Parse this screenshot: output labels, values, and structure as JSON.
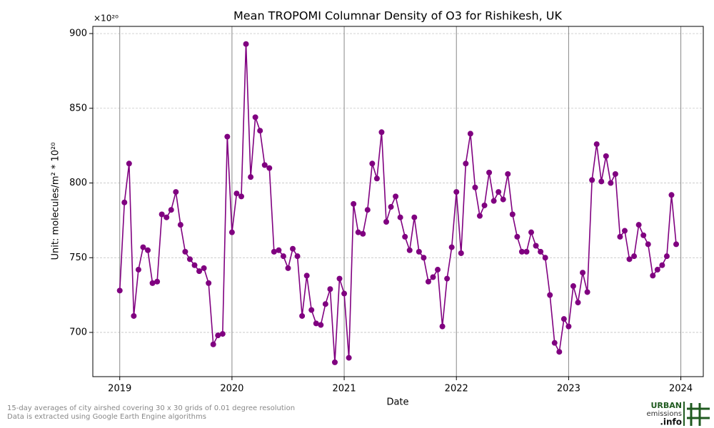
{
  "chart_data": {
    "type": "line",
    "title": "Mean TROPOMI Columnar Density of O3 for Rishikesh, UK",
    "y_offset_label": "×10²⁰",
    "x_label": "Date",
    "y_label": "Unit: molecules/m² * 10²⁰",
    "footnote": [
      "15-day averages of city airshed covering 30 x 30 grids of 0.01 degree resolution",
      "Data is extracted using Google Earth Engine algorithms"
    ],
    "logo": [
      "URBAN",
      "emissions",
      ".info"
    ],
    "x": [
      2019.0,
      2019.0417,
      2019.0833,
      2019.125,
      2019.1667,
      2019.2083,
      2019.25,
      2019.2917,
      2019.3333,
      2019.375,
      2019.4167,
      2019.4583,
      2019.5,
      2019.5417,
      2019.5833,
      2019.625,
      2019.6667,
      2019.7083,
      2019.75,
      2019.7917,
      2019.8333,
      2019.875,
      2019.9167,
      2019.9583,
      2020.0,
      2020.0417,
      2020.0833,
      2020.125,
      2020.1667,
      2020.2083,
      2020.25,
      2020.2917,
      2020.3333,
      2020.375,
      2020.4167,
      2020.4583,
      2020.5,
      2020.5417,
      2020.5833,
      2020.625,
      2020.6667,
      2020.7083,
      2020.75,
      2020.7917,
      2020.8333,
      2020.875,
      2020.9167,
      2020.9583,
      2021.0,
      2021.0417,
      2021.0833,
      2021.125,
      2021.1667,
      2021.2083,
      2021.25,
      2021.2917,
      2021.3333,
      2021.375,
      2021.4167,
      2021.4583,
      2021.5,
      2021.5417,
      2021.5833,
      2021.625,
      2021.6667,
      2021.7083,
      2021.75,
      2021.7917,
      2021.8333,
      2021.875,
      2021.9167,
      2021.9583,
      2022.0,
      2022.0417,
      2022.0833,
      2022.125,
      2022.1667,
      2022.2083,
      2022.25,
      2022.2917,
      2022.3333,
      2022.375,
      2022.4167,
      2022.4583,
      2022.5,
      2022.5417,
      2022.5833,
      2022.625,
      2022.6667,
      2022.7083,
      2022.75,
      2022.7917,
      2022.8333,
      2022.875,
      2022.9167,
      2022.9583,
      2023.0,
      2023.0417,
      2023.0833,
      2023.125,
      2023.1667,
      2023.2083,
      2023.25,
      2023.2917,
      2023.3333,
      2023.375,
      2023.4167,
      2023.4583,
      2023.5,
      2023.5417,
      2023.5833,
      2023.625,
      2023.6667,
      2023.7083,
      2023.75,
      2023.7917,
      2023.8333,
      2023.875,
      2023.9167,
      2023.9583
    ],
    "series": [
      {
        "name": "O3",
        "color": "#800080",
        "values": [
          728,
          787,
          813,
          711,
          742,
          757,
          755,
          733,
          734,
          779,
          777,
          782,
          794,
          772,
          754,
          749,
          745,
          741,
          743,
          733,
          692,
          698,
          699,
          831,
          767,
          793,
          791,
          893,
          804,
          844,
          835,
          812,
          810,
          754,
          755,
          751,
          743,
          756,
          751,
          711,
          738,
          715,
          706,
          705,
          719,
          729,
          680,
          736,
          726,
          683,
          786,
          767,
          766,
          782,
          813,
          803,
          834,
          774,
          784,
          791,
          777,
          764,
          755,
          777,
          754,
          750,
          734,
          737,
          742,
          704,
          736,
          757,
          794,
          753,
          813,
          833,
          797,
          778,
          785,
          807,
          788,
          794,
          789,
          806,
          779,
          764,
          754,
          754,
          767,
          758,
          754,
          750,
          725,
          693,
          687,
          709,
          704,
          731,
          720,
          740,
          727,
          802,
          826,
          801,
          818,
          800,
          806,
          764,
          768,
          749,
          751,
          772,
          765,
          759,
          738,
          742,
          745,
          751,
          792,
          759
        ]
      }
    ],
    "xlim": [
      2018.76,
      2024.2
    ],
    "xticks": [
      2019,
      2020,
      2021,
      2022,
      2023,
      2024
    ],
    "ylim": [
      670.4,
      904.8
    ],
    "yticks": [
      700,
      750,
      800,
      850,
      900
    ],
    "grid": true
  }
}
